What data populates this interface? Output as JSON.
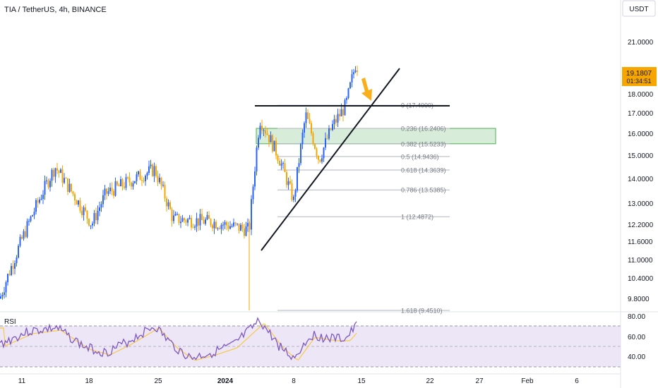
{
  "header": {
    "symbol": "TIA / TetherUS, 4h, BINANCE",
    "currency": "USDT"
  },
  "price_badge": {
    "price": "19.1807",
    "countdown": "01:34:51",
    "color": "#f7a600"
  },
  "rsi_panel": {
    "label": "RSI",
    "ticks": [
      "80.00",
      "60.00",
      "40.00"
    ],
    "upper_level": 70,
    "lower_level": 30,
    "line_color": "#7e57c2",
    "ma_color": "#f7c948",
    "band_color": "#ece6f6"
  },
  "fib_levels": [
    {
      "label": "0 (17.4000)",
      "value": 17.4
    },
    {
      "label": "0.236 (16.2406)",
      "value": 16.2406
    },
    {
      "label": "0.382 (15.5233)",
      "value": 15.5233
    },
    {
      "label": "0.5 (14.9436)",
      "value": 14.9436
    },
    {
      "label": "0.618 (14.3639)",
      "value": 14.3639
    },
    {
      "label": "0.786 (13.5385)",
      "value": 13.5385
    },
    {
      "label": "1 (12.4872)",
      "value": 12.4872
    },
    {
      "label": "1.618 (9.4510)",
      "value": 9.451
    }
  ],
  "zone": {
    "from": 15.5233,
    "to": 16.2406,
    "color": "#4caf50"
  },
  "chart_data": {
    "type": "candlestick",
    "title": "TIA / TetherUS, 4h, BINANCE",
    "y_axis_ticks": [
      "21.0000",
      "19.1807",
      "18.0000",
      "17.0000",
      "16.0000",
      "15.0000",
      "14.0000",
      "13.0000",
      "12.2000",
      "11.6000",
      "11.0000",
      "10.4000",
      "9.8000"
    ],
    "y_axis_values": [
      21.0,
      18.0,
      17.0,
      16.0,
      15.0,
      14.0,
      13.0,
      12.2,
      11.6,
      11.0,
      10.4,
      9.8
    ],
    "y_scale": "log",
    "x_axis_ticks": [
      "11",
      "18",
      "25",
      "2024",
      "8",
      "15",
      "22",
      "27",
      "Feb",
      "6"
    ],
    "up_color": "#2962ff",
    "down_color": "#f7a600",
    "last_price": 19.1807,
    "series_anchors": [
      {
        "date": "Dec 10",
        "price": 9.8
      },
      {
        "date": "Dec 14",
        "price": 14.5
      },
      {
        "date": "Dec 17",
        "price": 12.2
      },
      {
        "date": "Dec 21",
        "price": 13.4
      },
      {
        "date": "Dec 24",
        "price": 14.4
      },
      {
        "date": "Dec 27",
        "price": 12.4
      },
      {
        "date": "Dec 30",
        "price": 12.3
      },
      {
        "date": "Jan 2",
        "price": 12.0
      },
      {
        "date": "Jan 3",
        "price": 16.7
      },
      {
        "date": "Jan 5",
        "price": 14.9
      },
      {
        "date": "Jan 7",
        "price": 13.1
      },
      {
        "date": "Jan 9",
        "price": 16.9
      },
      {
        "date": "Jan 10",
        "price": 14.8
      },
      {
        "date": "Jan 12",
        "price": 16.3
      },
      {
        "date": "Jan 13",
        "price": 17.4
      },
      {
        "date": "Jan 14",
        "price": 19.9
      },
      {
        "date": "Jan 14 16:00",
        "price": 19.18
      }
    ]
  }
}
